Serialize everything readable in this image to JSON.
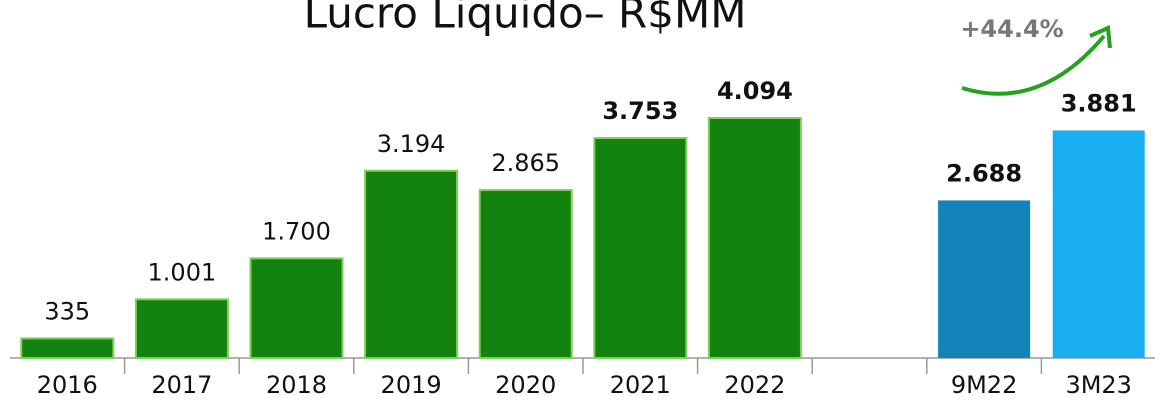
{
  "chart_data": {
    "type": "bar",
    "title": "Lucro Liquido– R$MM",
    "annotation": "+44.4%",
    "categories": [
      "2016",
      "2017",
      "2018",
      "2019",
      "2020",
      "2021",
      "2022",
      null,
      "9M22",
      "3M23"
    ],
    "values": [
      335,
      1001,
      1700,
      3194,
      2865,
      3753,
      4094,
      null,
      2688,
      3881
    ],
    "value_labels": [
      "335",
      "1.001",
      "1.700",
      "3.194",
      "2.865",
      "3.753",
      "4.094",
      null,
      "2.688",
      "3.881"
    ],
    "colors": [
      "#13820f",
      "#13820f",
      "#13820f",
      "#13820f",
      "#13820f",
      "#13820f",
      "#13820f",
      null,
      "#1383b9",
      "#18aef0"
    ]
  }
}
